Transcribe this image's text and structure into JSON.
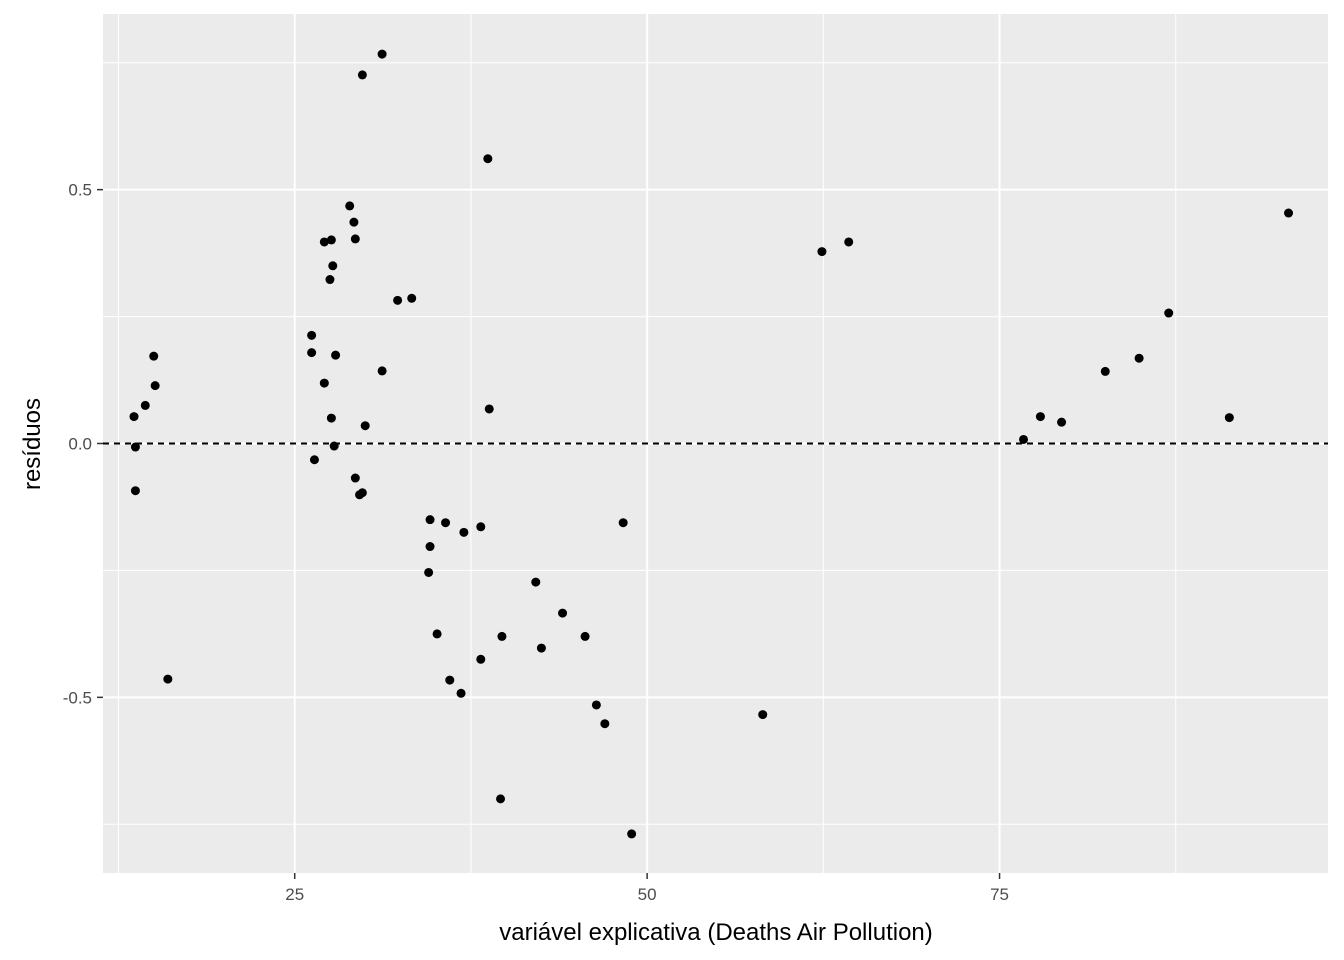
{
  "chart_data": {
    "type": "scatter",
    "xlabel": "variável explicativa (Deaths Air Pollution)",
    "ylabel": "resíduos",
    "xlim": [
      11.4,
      98.3
    ],
    "ylim": [
      -0.846,
      0.846
    ],
    "x_ticks": [
      25,
      50,
      75
    ],
    "x_tick_labels": [
      "25",
      "50",
      "75"
    ],
    "y_ticks": [
      -0.5,
      0.0,
      0.5
    ],
    "y_tick_labels": [
      "-0.5",
      "0.0",
      "0.5"
    ],
    "x_minor_ticks": [
      12.5,
      37.5,
      62.5,
      87.5
    ],
    "y_minor_ticks": [
      -0.75,
      -0.25,
      0.25,
      0.75
    ],
    "grid": true,
    "background": "#ebebeb",
    "grid_color": "#ffffff",
    "point_color": "#000000",
    "reference_line": {
      "y": 0,
      "style": "dashed",
      "color": "#000000"
    },
    "points": [
      {
        "x": 13.6,
        "y": 0.053
      },
      {
        "x": 13.7,
        "y": -0.007
      },
      {
        "x": 13.7,
        "y": -0.093
      },
      {
        "x": 14.4,
        "y": 0.075
      },
      {
        "x": 15.0,
        "y": 0.172
      },
      {
        "x": 15.1,
        "y": 0.114
      },
      {
        "x": 16.0,
        "y": -0.464
      },
      {
        "x": 26.2,
        "y": 0.213
      },
      {
        "x": 26.2,
        "y": 0.179
      },
      {
        "x": 26.4,
        "y": -0.032
      },
      {
        "x": 27.1,
        "y": 0.397
      },
      {
        "x": 27.1,
        "y": 0.119
      },
      {
        "x": 27.5,
        "y": 0.323
      },
      {
        "x": 27.6,
        "y": 0.05
      },
      {
        "x": 27.6,
        "y": 0.401
      },
      {
        "x": 27.7,
        "y": 0.35
      },
      {
        "x": 27.8,
        "y": -0.005
      },
      {
        "x": 27.9,
        "y": 0.174
      },
      {
        "x": 28.9,
        "y": 0.468
      },
      {
        "x": 29.2,
        "y": 0.436
      },
      {
        "x": 29.3,
        "y": 0.403
      },
      {
        "x": 29.3,
        "y": -0.068
      },
      {
        "x": 29.6,
        "y": -0.101
      },
      {
        "x": 29.8,
        "y": -0.097
      },
      {
        "x": 29.8,
        "y": 0.726
      },
      {
        "x": 30.0,
        "y": 0.035
      },
      {
        "x": 31.2,
        "y": 0.767
      },
      {
        "x": 31.2,
        "y": 0.143
      },
      {
        "x": 32.3,
        "y": 0.282
      },
      {
        "x": 33.3,
        "y": 0.286
      },
      {
        "x": 34.5,
        "y": -0.254
      },
      {
        "x": 34.6,
        "y": -0.15
      },
      {
        "x": 34.6,
        "y": -0.203
      },
      {
        "x": 35.1,
        "y": -0.375
      },
      {
        "x": 35.7,
        "y": -0.156
      },
      {
        "x": 36.0,
        "y": -0.466
      },
      {
        "x": 36.8,
        "y": -0.492
      },
      {
        "x": 37.0,
        "y": -0.175
      },
      {
        "x": 38.2,
        "y": -0.425
      },
      {
        "x": 38.2,
        "y": -0.164
      },
      {
        "x": 38.7,
        "y": 0.561
      },
      {
        "x": 38.8,
        "y": 0.068
      },
      {
        "x": 39.6,
        "y": -0.7
      },
      {
        "x": 39.7,
        "y": -0.38
      },
      {
        "x": 42.1,
        "y": -0.273
      },
      {
        "x": 42.5,
        "y": -0.403
      },
      {
        "x": 44.0,
        "y": -0.334
      },
      {
        "x": 45.6,
        "y": -0.38
      },
      {
        "x": 46.4,
        "y": -0.515
      },
      {
        "x": 47.0,
        "y": -0.552
      },
      {
        "x": 48.3,
        "y": -0.156
      },
      {
        "x": 48.9,
        "y": -0.769
      },
      {
        "x": 58.2,
        "y": -0.534
      },
      {
        "x": 62.4,
        "y": 0.378
      },
      {
        "x": 64.3,
        "y": 0.397
      },
      {
        "x": 76.7,
        "y": 0.008
      },
      {
        "x": 77.9,
        "y": 0.053
      },
      {
        "x": 79.4,
        "y": 0.042
      },
      {
        "x": 82.5,
        "y": 0.142
      },
      {
        "x": 84.9,
        "y": 0.168
      },
      {
        "x": 87.0,
        "y": 0.257
      },
      {
        "x": 91.3,
        "y": 0.051
      },
      {
        "x": 95.5,
        "y": 0.454
      }
    ]
  }
}
